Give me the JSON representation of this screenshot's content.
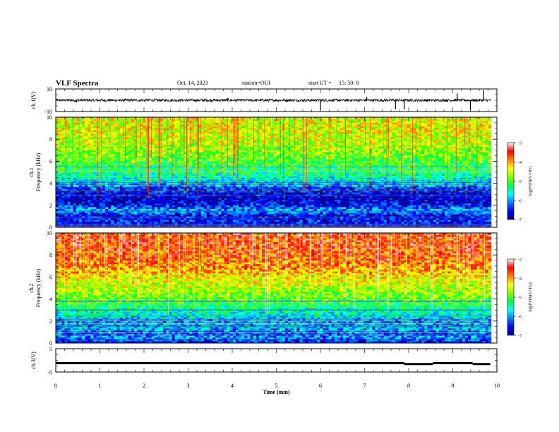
{
  "header": {
    "title": "VLF Spectra",
    "date": "Oct. 14, 2023",
    "station": "station=OUI",
    "start_label": "start  UT =",
    "start_time": "15: 50: 0"
  },
  "chart_data": [
    {
      "id": "ch1_waveform",
      "type": "line",
      "ylabel": "ch.1(V)",
      "ylim": [
        -10,
        10
      ],
      "yticks": [
        "10",
        "-10"
      ],
      "xlim": [
        0,
        10
      ],
      "baseline": 0,
      "spikes": [
        {
          "x": 0.47,
          "y": -2
        },
        {
          "x": 3.9,
          "y": 2
        },
        {
          "x": 6.0,
          "y": -9
        },
        {
          "x": 7.05,
          "y": 3
        },
        {
          "x": 7.7,
          "y": -8
        },
        {
          "x": 7.9,
          "y": -8
        },
        {
          "x": 9.1,
          "y": 6
        },
        {
          "x": 9.4,
          "y": -9
        },
        {
          "x": 9.7,
          "y": 9
        }
      ]
    },
    {
      "id": "ch1_spectrogram",
      "type": "heatmap",
      "ylabel": "ch.1\nFrequency (kHz)",
      "ylim": [
        0,
        10
      ],
      "yticks": [
        "0",
        "2",
        "4",
        "6",
        "8",
        "10"
      ],
      "xlim": [
        0,
        10
      ],
      "profile": [
        {
          "f": 0.0,
          "v": -6.9
        },
        {
          "f": 0.5,
          "v": -6.4
        },
        {
          "f": 1.0,
          "v": -6.7
        },
        {
          "f": 1.5,
          "v": -5.9
        },
        {
          "f": 2.0,
          "v": -6.5
        },
        {
          "f": 2.5,
          "v": -6.8
        },
        {
          "f": 3.0,
          "v": -6.7
        },
        {
          "f": 3.5,
          "v": -6.4
        },
        {
          "f": 4.0,
          "v": -5.8
        },
        {
          "f": 5.0,
          "v": -5.3
        },
        {
          "f": 6.0,
          "v": -5.0
        },
        {
          "f": 7.0,
          "v": -4.7
        },
        {
          "f": 8.0,
          "v": -4.5
        },
        {
          "f": 9.0,
          "v": -4.4
        },
        {
          "f": 10.0,
          "v": -4.4
        }
      ]
    },
    {
      "id": "ch2_spectrogram",
      "type": "heatmap",
      "ylabel": "ch.2\nFrequency (kHz)",
      "ylim": [
        0,
        10
      ],
      "yticks": [
        "0",
        "2",
        "4",
        "6",
        "8",
        "10"
      ],
      "xlim": [
        0,
        10
      ],
      "profile": [
        {
          "f": 0.0,
          "v": -6.6
        },
        {
          "f": 0.5,
          "v": -6.0
        },
        {
          "f": 1.0,
          "v": -6.2
        },
        {
          "f": 1.5,
          "v": -5.8
        },
        {
          "f": 2.0,
          "v": -6.0
        },
        {
          "f": 2.5,
          "v": -5.6
        },
        {
          "f": 3.0,
          "v": -5.5
        },
        {
          "f": 3.5,
          "v": -5.2
        },
        {
          "f": 4.0,
          "v": -4.9
        },
        {
          "f": 5.0,
          "v": -4.6
        },
        {
          "f": 6.0,
          "v": -4.3
        },
        {
          "f": 7.0,
          "v": -3.9
        },
        {
          "f": 8.0,
          "v": -3.7
        },
        {
          "f": 9.0,
          "v": -3.6
        },
        {
          "f": 10.0,
          "v": -3.6
        }
      ]
    },
    {
      "id": "ch3_waveform",
      "type": "line",
      "ylabel": "ch.3(V)",
      "ylim": [
        -5,
        5
      ],
      "yticks": [
        "5",
        "-5"
      ],
      "xlim": [
        0,
        10
      ],
      "xlabel": "Time  (min)",
      "xticks": [
        "0",
        "1",
        "2",
        "3",
        "4",
        "5",
        "6",
        "7",
        "8",
        "9",
        "10"
      ],
      "segments": [
        {
          "x0": 0.0,
          "x1": 7.9,
          "y": -1.2
        },
        {
          "x0": 7.9,
          "x1": 8.55,
          "y": -1.6
        },
        {
          "x0": 8.55,
          "x1": 9.45,
          "y": -1.2
        },
        {
          "x0": 9.45,
          "x1": 9.85,
          "y": -1.6
        }
      ]
    }
  ],
  "colorbar": {
    "label": "log(PSD)(V²/Hz)",
    "range": [
      -7,
      -3
    ],
    "ticks": [
      "-3",
      "-4",
      "-5",
      "-6",
      "-7"
    ],
    "colors": [
      "#00007f",
      "#0000ff",
      "#0080ff",
      "#00ffff",
      "#00ff40",
      "#80ff00",
      "#ffff00",
      "#ff8000",
      "#ff0000",
      "#ffffff"
    ]
  }
}
